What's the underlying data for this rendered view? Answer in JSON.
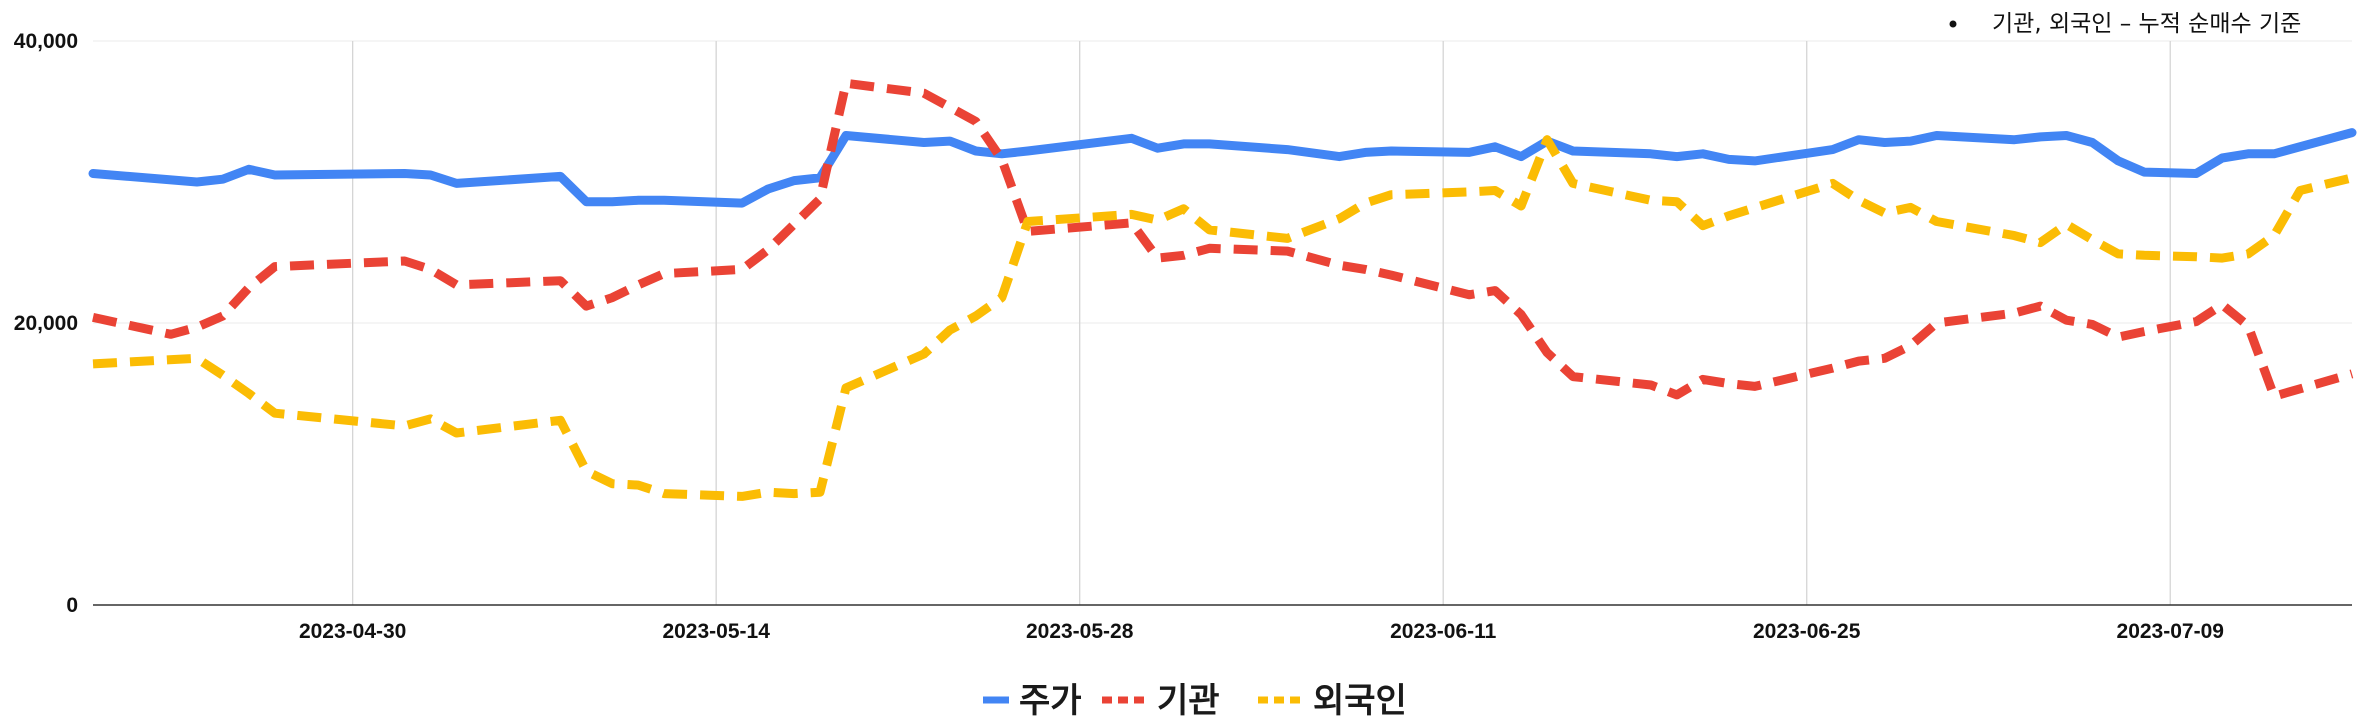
{
  "chart_data": {
    "type": "line",
    "note": "기관, 외국인 – 누적 순매수 기준",
    "ylim": [
      0,
      40000
    ],
    "y_ticks": [
      {
        "value": 0,
        "label": "0"
      },
      {
        "value": 20000,
        "label": "20,000"
      },
      {
        "value": 40000,
        "label": "40,000"
      }
    ],
    "xlim": [
      "2023-04-20",
      "2023-07-16"
    ],
    "x_ticks": [
      {
        "date": "2023-04-30",
        "label": "2023-04-30"
      },
      {
        "date": "2023-05-14",
        "label": "2023-05-14"
      },
      {
        "date": "2023-05-28",
        "label": "2023-05-28"
      },
      {
        "date": "2023-06-11",
        "label": "2023-06-11"
      },
      {
        "date": "2023-06-25",
        "label": "2023-06-25"
      },
      {
        "date": "2023-07-09",
        "label": "2023-07-09"
      }
    ],
    "grid": {
      "vertical": true,
      "horizontal": true
    },
    "legend_position": "bottom",
    "series": [
      {
        "name": "주가",
        "color": "#4285F4",
        "dash": "solid",
        "points": [
          [
            "2023-04-20",
            30600
          ],
          [
            "2023-04-24",
            30000
          ],
          [
            "2023-04-25",
            30200
          ],
          [
            "2023-04-26",
            30900
          ],
          [
            "2023-04-27",
            30500
          ],
          [
            "2023-05-02",
            30600
          ],
          [
            "2023-05-03",
            30500
          ],
          [
            "2023-05-04",
            29900
          ],
          [
            "2023-05-08",
            30400
          ],
          [
            "2023-05-09",
            28600
          ],
          [
            "2023-05-10",
            28600
          ],
          [
            "2023-05-11",
            28700
          ],
          [
            "2023-05-12",
            28700
          ],
          [
            "2023-05-15",
            28500
          ],
          [
            "2023-05-16",
            29500
          ],
          [
            "2023-05-17",
            30100
          ],
          [
            "2023-05-18",
            30300
          ],
          [
            "2023-05-19",
            33300
          ],
          [
            "2023-05-22",
            32800
          ],
          [
            "2023-05-23",
            32900
          ],
          [
            "2023-05-24",
            32200
          ],
          [
            "2023-05-25",
            32000
          ],
          [
            "2023-05-26",
            32200
          ],
          [
            "2023-05-30",
            33100
          ],
          [
            "2023-05-31",
            32400
          ],
          [
            "2023-06-01",
            32700
          ],
          [
            "2023-06-02",
            32700
          ],
          [
            "2023-06-05",
            32300
          ],
          [
            "2023-06-07",
            31800
          ],
          [
            "2023-06-08",
            32100
          ],
          [
            "2023-06-09",
            32200
          ],
          [
            "2023-06-12",
            32100
          ],
          [
            "2023-06-13",
            32500
          ],
          [
            "2023-06-14",
            31800
          ],
          [
            "2023-06-15",
            32900
          ],
          [
            "2023-06-16",
            32200
          ],
          [
            "2023-06-19",
            32000
          ],
          [
            "2023-06-20",
            31800
          ],
          [
            "2023-06-21",
            32000
          ],
          [
            "2023-06-22",
            31600
          ],
          [
            "2023-06-23",
            31500
          ],
          [
            "2023-06-26",
            32300
          ],
          [
            "2023-06-27",
            33000
          ],
          [
            "2023-06-28",
            32800
          ],
          [
            "2023-06-29",
            32900
          ],
          [
            "2023-06-30",
            33300
          ],
          [
            "2023-07-03",
            33000
          ],
          [
            "2023-07-04",
            33200
          ],
          [
            "2023-07-05",
            33300
          ],
          [
            "2023-07-06",
            32800
          ],
          [
            "2023-07-07",
            31500
          ],
          [
            "2023-07-08",
            30700
          ],
          [
            "2023-07-10",
            30600
          ],
          [
            "2023-07-11",
            31700
          ],
          [
            "2023-07-12",
            32000
          ],
          [
            "2023-07-13",
            32000
          ],
          [
            "2023-07-16",
            33500
          ]
        ]
      },
      {
        "name": "기관",
        "color": "#EA4335",
        "dash": "dashed",
        "points": [
          [
            "2023-04-20",
            20400
          ],
          [
            "2023-04-23",
            19200
          ],
          [
            "2023-04-24",
            19700
          ],
          [
            "2023-04-25",
            20500
          ],
          [
            "2023-04-26",
            22500
          ],
          [
            "2023-04-27",
            24000
          ],
          [
            "2023-05-02",
            24400
          ],
          [
            "2023-05-03",
            23800
          ],
          [
            "2023-05-04",
            22700
          ],
          [
            "2023-05-08",
            23000
          ],
          [
            "2023-05-09",
            21200
          ],
          [
            "2023-05-10",
            21800
          ],
          [
            "2023-05-11",
            22700
          ],
          [
            "2023-05-12",
            23500
          ],
          [
            "2023-05-15",
            23800
          ],
          [
            "2023-05-16",
            25200
          ],
          [
            "2023-05-17",
            27000
          ],
          [
            "2023-05-18",
            28800
          ],
          [
            "2023-05-19",
            37000
          ],
          [
            "2023-05-22",
            36300
          ],
          [
            "2023-05-23",
            35300
          ],
          [
            "2023-05-24",
            34300
          ],
          [
            "2023-05-25",
            31600
          ],
          [
            "2023-05-26",
            26500
          ],
          [
            "2023-05-30",
            27100
          ],
          [
            "2023-05-31",
            24600
          ],
          [
            "2023-06-01",
            24800
          ],
          [
            "2023-06-02",
            25300
          ],
          [
            "2023-06-05",
            25100
          ],
          [
            "2023-06-07",
            24100
          ],
          [
            "2023-06-08",
            23800
          ],
          [
            "2023-06-09",
            23400
          ],
          [
            "2023-06-12",
            22000
          ],
          [
            "2023-06-13",
            22300
          ],
          [
            "2023-06-14",
            20600
          ],
          [
            "2023-06-15",
            17900
          ],
          [
            "2023-06-16",
            16200
          ],
          [
            "2023-06-19",
            15600
          ],
          [
            "2023-06-20",
            14900
          ],
          [
            "2023-06-21",
            16000
          ],
          [
            "2023-06-22",
            15700
          ],
          [
            "2023-06-23",
            15500
          ],
          [
            "2023-06-26",
            16800
          ],
          [
            "2023-06-27",
            17300
          ],
          [
            "2023-06-28",
            17500
          ],
          [
            "2023-06-29",
            18400
          ],
          [
            "2023-06-30",
            20000
          ],
          [
            "2023-07-03",
            20700
          ],
          [
            "2023-07-04",
            21200
          ],
          [
            "2023-07-05",
            20200
          ],
          [
            "2023-07-06",
            19900
          ],
          [
            "2023-07-07",
            19000
          ],
          [
            "2023-07-08",
            19400
          ],
          [
            "2023-07-10",
            20100
          ],
          [
            "2023-07-11",
            21300
          ],
          [
            "2023-07-12",
            19800
          ],
          [
            "2023-07-13",
            14800
          ],
          [
            "2023-07-16",
            16400
          ]
        ]
      },
      {
        "name": "외국인",
        "color": "#FBBC04",
        "dash": "dashed",
        "points": [
          [
            "2023-04-20",
            17100
          ],
          [
            "2023-04-24",
            17500
          ],
          [
            "2023-04-25",
            16300
          ],
          [
            "2023-04-26",
            15000
          ],
          [
            "2023-04-27",
            13600
          ],
          [
            "2023-05-02",
            12700
          ],
          [
            "2023-05-03",
            13200
          ],
          [
            "2023-05-04",
            12200
          ],
          [
            "2023-05-08",
            13100
          ],
          [
            "2023-05-09",
            9500
          ],
          [
            "2023-05-10",
            8600
          ],
          [
            "2023-05-11",
            8500
          ],
          [
            "2023-05-12",
            7900
          ],
          [
            "2023-05-15",
            7700
          ],
          [
            "2023-05-16",
            8000
          ],
          [
            "2023-05-17",
            7900
          ],
          [
            "2023-05-18",
            8000
          ],
          [
            "2023-05-19",
            15400
          ],
          [
            "2023-05-22",
            17800
          ],
          [
            "2023-05-23",
            19500
          ],
          [
            "2023-05-24",
            20500
          ],
          [
            "2023-05-25",
            21800
          ],
          [
            "2023-05-26",
            27200
          ],
          [
            "2023-05-30",
            27700
          ],
          [
            "2023-05-31",
            27300
          ],
          [
            "2023-06-01",
            28100
          ],
          [
            "2023-06-02",
            26600
          ],
          [
            "2023-06-05",
            26000
          ],
          [
            "2023-06-07",
            27400
          ],
          [
            "2023-06-08",
            28500
          ],
          [
            "2023-06-09",
            29100
          ],
          [
            "2023-06-12",
            29300
          ],
          [
            "2023-06-13",
            29400
          ],
          [
            "2023-06-14",
            28300
          ],
          [
            "2023-06-15",
            33000
          ],
          [
            "2023-06-16",
            29900
          ],
          [
            "2023-06-19",
            28700
          ],
          [
            "2023-06-20",
            28600
          ],
          [
            "2023-06-21",
            26900
          ],
          [
            "2023-06-22",
            27600
          ],
          [
            "2023-06-26",
            29900
          ],
          [
            "2023-06-27",
            28700
          ],
          [
            "2023-06-28",
            27800
          ],
          [
            "2023-06-29",
            28200
          ],
          [
            "2023-06-30",
            27200
          ],
          [
            "2023-07-03",
            26200
          ],
          [
            "2023-07-04",
            25700
          ],
          [
            "2023-07-05",
            27000
          ],
          [
            "2023-07-06",
            25900
          ],
          [
            "2023-07-07",
            24900
          ],
          [
            "2023-07-08",
            24800
          ],
          [
            "2023-07-10",
            24700
          ],
          [
            "2023-07-11",
            24600
          ],
          [
            "2023-07-12",
            24900
          ],
          [
            "2023-07-13",
            26200
          ],
          [
            "2023-07-14",
            29400
          ],
          [
            "2023-07-16",
            30300
          ]
        ]
      }
    ]
  }
}
